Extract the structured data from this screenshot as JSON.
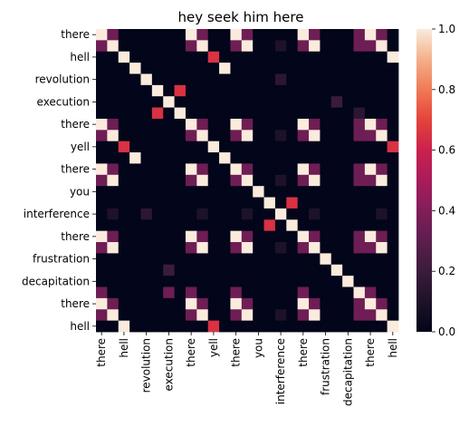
{
  "chart_data": {
    "type": "heatmap",
    "title": "hey seek him here",
    "xlabel": "",
    "ylabel": "",
    "row_labels": [
      "there",
      "",
      "hell",
      "",
      "revolution",
      "",
      "execution",
      "",
      "there",
      "",
      "yell",
      "",
      "there",
      "",
      "you",
      "",
      "interference",
      "",
      "there",
      "",
      "frustration",
      "",
      "decapitation",
      "",
      "there",
      "",
      "hell"
    ],
    "col_labels": [
      "there",
      "",
      "hell",
      "",
      "revolution",
      "",
      "execution",
      "",
      "there",
      "",
      "yell",
      "",
      "there",
      "",
      "you",
      "",
      "interference",
      "",
      "there",
      "",
      "frustration",
      "",
      "decapitation",
      "",
      "there",
      "",
      "hell"
    ],
    "colorbar": {
      "range": [
        0.0,
        1.0
      ],
      "ticks": [
        "0.0",
        "0.2",
        "0.4",
        "0.6",
        "0.8",
        "1.0"
      ],
      "colormap": "rocket"
    },
    "values": [
      [
        1,
        0.35,
        0,
        0,
        0,
        0,
        0,
        0,
        1,
        0.35,
        0,
        0,
        1,
        0.35,
        0,
        0,
        0,
        0,
        1,
        0.35,
        0,
        0,
        0,
        0.35,
        1,
        0.35,
        0
      ],
      [
        0.35,
        1,
        0,
        0,
        0,
        0,
        0,
        0,
        0.35,
        1,
        0,
        0,
        0.35,
        1,
        0,
        0,
        0.1,
        0,
        0.35,
        1,
        0,
        0,
        0,
        0.35,
        0.35,
        1,
        0
      ],
      [
        0,
        0,
        1,
        0,
        0,
        0,
        0,
        0,
        0,
        0,
        0.65,
        0,
        0,
        0,
        0,
        0,
        0,
        0,
        0,
        0,
        0,
        0,
        0,
        0,
        0,
        0,
        1
      ],
      [
        0,
        0,
        0,
        1,
        0,
        0,
        0,
        0,
        0,
        0,
        0,
        1,
        0,
        0,
        0,
        0,
        0,
        0,
        0,
        0,
        0,
        0,
        0,
        0,
        0,
        0,
        0
      ],
      [
        0,
        0,
        0,
        0,
        1,
        0,
        0,
        0,
        0,
        0,
        0,
        0,
        0,
        0,
        0,
        0,
        0.15,
        0,
        0,
        0,
        0,
        0,
        0,
        0,
        0,
        0,
        0
      ],
      [
        0,
        0,
        0,
        0,
        0,
        1,
        0,
        0.65,
        0,
        0,
        0,
        0,
        0,
        0,
        0,
        0,
        0,
        0,
        0,
        0,
        0,
        0,
        0,
        0,
        0,
        0,
        0
      ],
      [
        0,
        0,
        0,
        0,
        0,
        0,
        1,
        0,
        0,
        0,
        0,
        0,
        0,
        0,
        0,
        0,
        0,
        0,
        0,
        0,
        0,
        0.2,
        0,
        0,
        0,
        0,
        0
      ],
      [
        0,
        0,
        0,
        0,
        0,
        0.65,
        0,
        1,
        0,
        0,
        0,
        0,
        0,
        0,
        0,
        0,
        0,
        0,
        0,
        0,
        0,
        0,
        0,
        0.15,
        0,
        0,
        0
      ],
      [
        1,
        0.35,
        0,
        0,
        0,
        0,
        0,
        0,
        1,
        0.35,
        0,
        0,
        1,
        0.35,
        0,
        0,
        0,
        0,
        1,
        0.35,
        0,
        0,
        0,
        0.35,
        1,
        0.35,
        0
      ],
      [
        0.35,
        1,
        0,
        0,
        0,
        0,
        0,
        0,
        0.35,
        1,
        0,
        0,
        0.35,
        1,
        0,
        0,
        0.1,
        0,
        0.35,
        1,
        0,
        0,
        0,
        0.35,
        0.35,
        1,
        0
      ],
      [
        0,
        0,
        0.65,
        0,
        0,
        0,
        0,
        0,
        0,
        0,
        1,
        0,
        0,
        0,
        0,
        0,
        0,
        0,
        0,
        0,
        0,
        0,
        0,
        0,
        0,
        0,
        0.65
      ],
      [
        0,
        0,
        0,
        1,
        0,
        0,
        0,
        0,
        0,
        0,
        0,
        1,
        0,
        0,
        0,
        0,
        0,
        0,
        0,
        0,
        0,
        0,
        0,
        0,
        0,
        0,
        0
      ],
      [
        1,
        0.35,
        0,
        0,
        0,
        0,
        0,
        0,
        1,
        0.35,
        0,
        0,
        1,
        0.35,
        0,
        0,
        0,
        0,
        1,
        0.35,
        0,
        0,
        0,
        0.35,
        1,
        0.35,
        0
      ],
      [
        0.35,
        1,
        0,
        0,
        0,
        0,
        0,
        0,
        0.35,
        1,
        0,
        0,
        0.35,
        1,
        0,
        0,
        0.1,
        0,
        0.35,
        1,
        0,
        0,
        0,
        0.35,
        0.35,
        1,
        0
      ],
      [
        0,
        0,
        0,
        0,
        0,
        0,
        0,
        0,
        0,
        0,
        0,
        0,
        0,
        0,
        1,
        0,
        0,
        0,
        0,
        0,
        0,
        0,
        0,
        0,
        0,
        0,
        0
      ],
      [
        0,
        0,
        0,
        0,
        0,
        0,
        0,
        0,
        0,
        0,
        0,
        0,
        0,
        0,
        0,
        1,
        0,
        0.65,
        0,
        0,
        0,
        0,
        0,
        0,
        0,
        0,
        0
      ],
      [
        0,
        0.1,
        0,
        0,
        0.15,
        0,
        0,
        0,
        0,
        0.1,
        0,
        0,
        0,
        0.1,
        0,
        0,
        1,
        0,
        0,
        0.1,
        0,
        0,
        0,
        0,
        0,
        0.1,
        0
      ],
      [
        0,
        0,
        0,
        0,
        0,
        0,
        0,
        0,
        0,
        0,
        0,
        0,
        0,
        0,
        0,
        0.65,
        0,
        1,
        0,
        0,
        0,
        0,
        0,
        0,
        0,
        0,
        0
      ],
      [
        1,
        0.35,
        0,
        0,
        0,
        0,
        0,
        0,
        1,
        0.35,
        0,
        0,
        1,
        0.35,
        0,
        0,
        0,
        0,
        1,
        0.35,
        0,
        0,
        0,
        0.35,
        1,
        0.35,
        0
      ],
      [
        0.35,
        1,
        0,
        0,
        0,
        0,
        0,
        0,
        0.35,
        1,
        0,
        0,
        0.35,
        1,
        0,
        0,
        0.1,
        0,
        0.35,
        1,
        0,
        0,
        0,
        0.35,
        0.35,
        1,
        0
      ],
      [
        0,
        0,
        0,
        0,
        0,
        0,
        0,
        0,
        0,
        0,
        0,
        0,
        0,
        0,
        0,
        0,
        0,
        0,
        0,
        0,
        1,
        0,
        0,
        0,
        0,
        0,
        0
      ],
      [
        0,
        0,
        0,
        0,
        0,
        0,
        0.2,
        0,
        0,
        0,
        0,
        0,
        0,
        0,
        0,
        0,
        0,
        0,
        0,
        0,
        0,
        1,
        0,
        0,
        0,
        0,
        0
      ],
      [
        0,
        0,
        0,
        0,
        0,
        0,
        0,
        0,
        0,
        0,
        0,
        0,
        0,
        0,
        0,
        0,
        0,
        0,
        0,
        0,
        0,
        0,
        1,
        0,
        0,
        0,
        0
      ],
      [
        0.35,
        0,
        0,
        0,
        0,
        0,
        0.35,
        0,
        0.35,
        0,
        0,
        0,
        0.35,
        0,
        0,
        0,
        0,
        0,
        0.35,
        0,
        0,
        0,
        0,
        1,
        0.35,
        0,
        0
      ],
      [
        1,
        0.35,
        0,
        0,
        0,
        0,
        0,
        0,
        1,
        0.35,
        0,
        0,
        1,
        0.35,
        0,
        0,
        0,
        0,
        1,
        0.35,
        0,
        0,
        0,
        0.35,
        1,
        0.35,
        0
      ],
      [
        0.35,
        1,
        0,
        0,
        0,
        0,
        0,
        0,
        0.35,
        1,
        0,
        0,
        0.35,
        1,
        0,
        0,
        0.1,
        0,
        0.35,
        1,
        0,
        0,
        0,
        0.35,
        0.35,
        1,
        0
      ],
      [
        0,
        0,
        1,
        0,
        0,
        0,
        0,
        0,
        0,
        0,
        0.65,
        0,
        0,
        0,
        0,
        0,
        0,
        0,
        0,
        0,
        0,
        0,
        0,
        0,
        0,
        0,
        1
      ]
    ]
  }
}
